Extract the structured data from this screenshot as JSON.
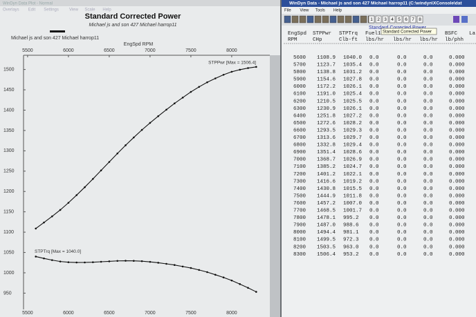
{
  "left_window": {
    "title": "WinDyn Data Plot - Normal",
    "menu": [
      "Overlays",
      "Edit",
      "Settings",
      "View",
      "Scale",
      "Help"
    ]
  },
  "chart_data": {
    "type": "line",
    "title": "Standard Corrected Power",
    "subtitle": "Michael js and son 427 Michael harrop11",
    "legend_label": "Michael js and son 427 Michael harrop11",
    "xlabel": "EngSpd RPM",
    "x": [
      5600,
      5700,
      5800,
      5900,
      6000,
      6100,
      6200,
      6300,
      6400,
      6500,
      6600,
      6700,
      6800,
      6900,
      7000,
      7100,
      7200,
      7300,
      7400,
      7500,
      7600,
      7700,
      7800,
      7900,
      8000,
      8100,
      8200,
      8300
    ],
    "series": [
      {
        "name": "STPPwr [Max = 1506.4]",
        "color": "#111111",
        "values": [
          1108.9,
          1123.7,
          1138.8,
          1154.6,
          1172.2,
          1191.0,
          1210.5,
          1230.9,
          1251.8,
          1272.6,
          1293.5,
          1313.6,
          1332.8,
          1351.4,
          1368.7,
          1385.2,
          1401.2,
          1416.6,
          1430.8,
          1444.9,
          1457.2,
          1468.5,
          1478.1,
          1487.0,
          1494.4,
          1499.5,
          1503.5,
          1506.4
        ]
      },
      {
        "name": "STPTrq [Max = 1040.0]",
        "color": "#111111",
        "values": [
          1040.0,
          1035.4,
          1031.2,
          1027.8,
          1026.1,
          1025.4,
          1025.5,
          1026.1,
          1027.2,
          1028.2,
          1029.3,
          1029.7,
          1029.4,
          1028.6,
          1026.9,
          1024.7,
          1022.1,
          1019.2,
          1015.5,
          1011.8,
          1007.0,
          1001.7,
          995.2,
          988.6,
          981.1,
          972.3,
          963.0,
          953.2
        ]
      }
    ],
    "xlim": [
      5450,
      8450
    ],
    "xticks": [
      5500,
      6000,
      6500,
      7000,
      7500,
      8000
    ],
    "ylim": [
      910,
      1535
    ],
    "yticks": [
      950,
      1000,
      1050,
      1100,
      1150,
      1200,
      1250,
      1300,
      1350,
      1400,
      1450,
      1500
    ]
  },
  "right_window": {
    "title": "WinDyn Data - Michael js and son 427 Michael harrop11  (C:\\windyn\\XConsole\\dat",
    "menu": [
      "File",
      "View",
      "Tools",
      "Help"
    ],
    "buttons": [
      "1",
      "2",
      "3",
      "4",
      "5",
      "6",
      "7",
      "8"
    ],
    "tooltip": "Standard Corrected Power",
    "heading": "Standard Corrected Power",
    "table": {
      "columns": [
        {
          "name": "EngSpd",
          "unit": "RPM"
        },
        {
          "name": "STPPwr",
          "unit": "CHp"
        },
        {
          "name": "STPTrq",
          "unit": "Clb-ft"
        },
        {
          "name": "Fuel1",
          "unit": "lbs/hr"
        },
        {
          "unit": "lbs/hr"
        },
        {
          "unit": "lbs/hr"
        },
        {
          "name": "BSFC",
          "unit": "lb/phh"
        },
        {
          "name": "La"
        }
      ],
      "rows": [
        [
          "5600",
          "1108.9",
          "1040.0",
          "0.0",
          "0.0",
          "0.0",
          "0.000"
        ],
        [
          "5700",
          "1123.7",
          "1035.4",
          "0.0",
          "0.0",
          "0.0",
          "0.000"
        ],
        [
          "5800",
          "1138.8",
          "1031.2",
          "0.0",
          "0.0",
          "0.0",
          "0.000"
        ],
        [
          "5900",
          "1154.6",
          "1027.8",
          "0.0",
          "0.0",
          "0.0",
          "0.000"
        ],
        [
          "6000",
          "1172.2",
          "1026.1",
          "0.0",
          "0.0",
          "0.0",
          "0.000"
        ],
        [
          "6100",
          "1191.0",
          "1025.4",
          "0.0",
          "0.0",
          "0.0",
          "0.000"
        ],
        [
          "6200",
          "1210.5",
          "1025.5",
          "0.0",
          "0.0",
          "0.0",
          "0.000"
        ],
        [
          "6300",
          "1230.9",
          "1026.1",
          "0.0",
          "0.0",
          "0.0",
          "0.000"
        ],
        [
          "6400",
          "1251.8",
          "1027.2",
          "0.0",
          "0.0",
          "0.0",
          "0.000"
        ],
        [
          "6500",
          "1272.6",
          "1028.2",
          "0.0",
          "0.0",
          "0.0",
          "0.000"
        ],
        [
          "6600",
          "1293.5",
          "1029.3",
          "0.0",
          "0.0",
          "0.0",
          "0.000"
        ],
        [
          "6700",
          "1313.6",
          "1029.7",
          "0.0",
          "0.0",
          "0.0",
          "0.000"
        ],
        [
          "6800",
          "1332.8",
          "1029.4",
          "0.0",
          "0.0",
          "0.0",
          "0.000"
        ],
        [
          "6900",
          "1351.4",
          "1028.6",
          "0.0",
          "0.0",
          "0.0",
          "0.000"
        ],
        [
          "7000",
          "1368.7",
          "1026.9",
          "0.0",
          "0.0",
          "0.0",
          "0.000"
        ],
        [
          "7100",
          "1385.2",
          "1024.7",
          "0.0",
          "0.0",
          "0.0",
          "0.000"
        ],
        [
          "7200",
          "1401.2",
          "1022.1",
          "0.0",
          "0.0",
          "0.0",
          "0.000"
        ],
        [
          "7300",
          "1416.6",
          "1019.2",
          "0.0",
          "0.0",
          "0.0",
          "0.000"
        ],
        [
          "7400",
          "1430.8",
          "1015.5",
          "0.0",
          "0.0",
          "0.0",
          "0.000"
        ],
        [
          "7500",
          "1444.9",
          "1011.8",
          "0.0",
          "0.0",
          "0.0",
          "0.000"
        ],
        [
          "7600",
          "1457.2",
          "1007.0",
          "0.0",
          "0.0",
          "0.0",
          "0.000"
        ],
        [
          "7700",
          "1468.5",
          "1001.7",
          "0.0",
          "0.0",
          "0.0",
          "0.000"
        ],
        [
          "7800",
          "1478.1",
          "995.2",
          "0.0",
          "0.0",
          "0.0",
          "0.000"
        ],
        [
          "7900",
          "1487.0",
          "988.6",
          "0.0",
          "0.0",
          "0.0",
          "0.000"
        ],
        [
          "8000",
          "1494.4",
          "981.1",
          "0.0",
          "0.0",
          "0.0",
          "0.000"
        ],
        [
          "8100",
          "1499.5",
          "972.3",
          "0.0",
          "0.0",
          "0.0",
          "0.000"
        ],
        [
          "8200",
          "1503.5",
          "963.0",
          "0.0",
          "0.0",
          "0.0",
          "0.000"
        ],
        [
          "8300",
          "1506.4",
          "953.2",
          "0.0",
          "0.0",
          "0.0",
          "0.000"
        ]
      ]
    }
  }
}
